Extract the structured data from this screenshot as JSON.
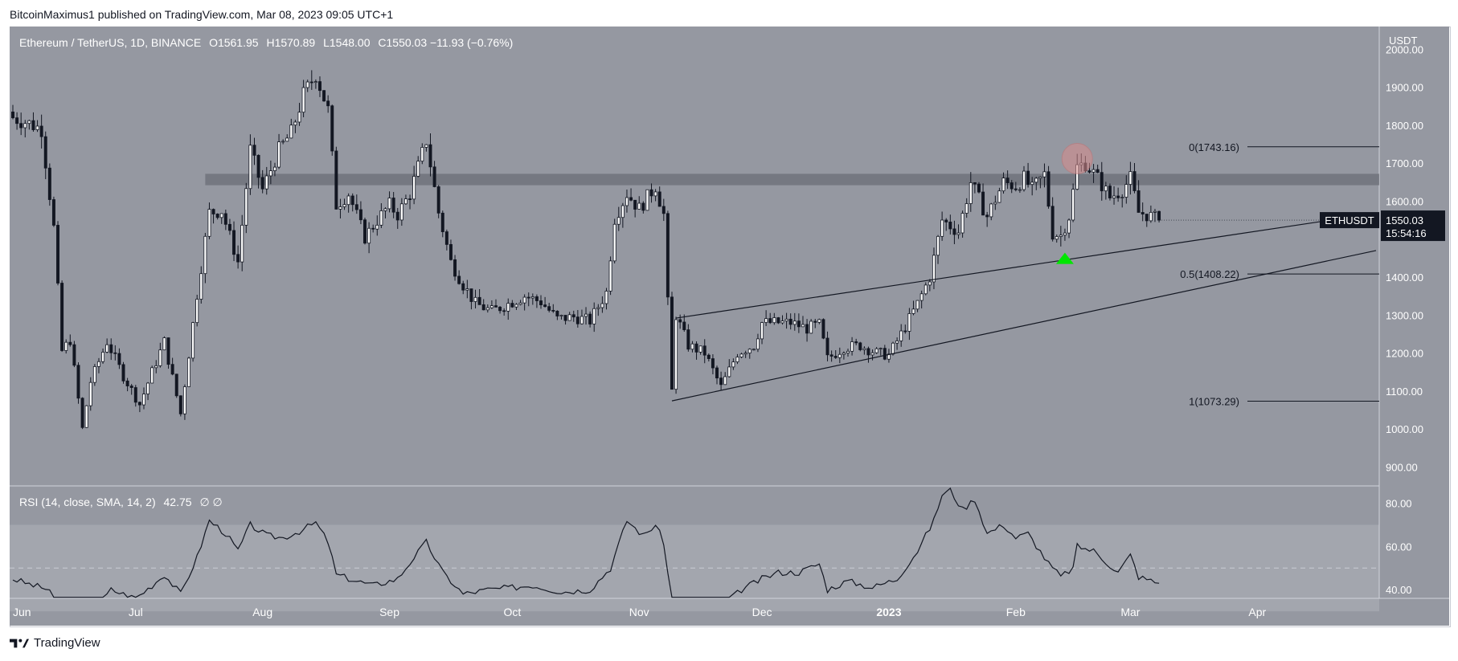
{
  "header": {
    "published": "BitcoinMaximus1 published on TradingView.com, Mar 08, 2023 09:05 UTC+1"
  },
  "legend": {
    "symbol": "Ethereum / TetherUS, 1D, BINANCE",
    "o_label": "O",
    "o": "1561.95",
    "h_label": "H",
    "h": "1570.89",
    "l_label": "L",
    "l": "1548.00",
    "c_label": "C",
    "c": "1550.03",
    "change": "−11.93 (−0.76%)"
  },
  "rsi_legend": {
    "label": "RSI (14, close, SMA, 14, 2)",
    "value": "42.75",
    "extra": "∅ ∅"
  },
  "price_axis": {
    "currency": "USDT",
    "ticks": [
      "2000.00",
      "1900.00",
      "1800.00",
      "1700.00",
      "1600.00",
      "1400.00",
      "1300.00",
      "1200.00",
      "1100.00",
      "1000.00",
      "900.00"
    ],
    "rsi_ticks": [
      "80.00",
      "60.00",
      "40.00"
    ]
  },
  "last_price": {
    "symbol": "ETHUSDT",
    "price": "1550.03",
    "countdown": "15:54:16"
  },
  "fib_labels": {
    "fib_0": "0(1743.16)",
    "fib_05": "0.5(1408.22)",
    "fib_1": "1(1073.29)"
  },
  "time_axis": {
    "labels": [
      "Jun",
      "Jul",
      "Aug",
      "Sep",
      "Oct",
      "Nov",
      "Dec",
      "2023",
      "Feb",
      "Mar",
      "Apr"
    ]
  },
  "brand": {
    "name": "TradingView"
  },
  "colors": {
    "pane_bg": "#9598a1",
    "up": "#ffffff",
    "down": "#131722",
    "zone": "#6b6e77",
    "marker_up": "#00e600",
    "marker_top": "#d98d8d",
    "label_bg": "#131722"
  },
  "chart_data": {
    "type": "candlestick",
    "title": "Ethereum / TetherUS, 1D, BINANCE",
    "x_range": [
      "2022-06-01",
      "2023-04-30"
    ],
    "y_range": [
      850,
      2060
    ],
    "resistance_zone": [
      1642,
      1672
    ],
    "fibonacci": [
      {
        "level": "0",
        "price": 1743.16
      },
      {
        "level": "0.5",
        "price": 1408.22
      },
      {
        "level": "1",
        "price": 1073.29
      }
    ],
    "channel_lines": [
      {
        "from": [
          "2022-11-09",
          1074
        ],
        "to": [
          "2023-04-30",
          1470
        ]
      },
      {
        "from": [
          "2022-11-10",
          1292
        ],
        "to": [
          "2023-04-30",
          1568
        ]
      }
    ],
    "markers": [
      {
        "type": "support_arrow",
        "date": "2023-02-13",
        "price": 1460
      },
      {
        "type": "rejection_circle",
        "date": "2023-02-16",
        "price": 1712
      }
    ],
    "close_anchors": [
      [
        "2022-06-01",
        1820
      ],
      [
        "2022-06-05",
        1805
      ],
      [
        "2022-06-08",
        1790
      ],
      [
        "2022-06-11",
        1530
      ],
      [
        "2022-06-13",
        1205
      ],
      [
        "2022-06-15",
        1235
      ],
      [
        "2022-06-18",
        1000
      ],
      [
        "2022-06-20",
        1125
      ],
      [
        "2022-06-24",
        1230
      ],
      [
        "2022-06-28",
        1140
      ],
      [
        "2022-07-02",
        1065
      ],
      [
        "2022-07-05",
        1150
      ],
      [
        "2022-07-08",
        1230
      ],
      [
        "2022-07-12",
        1040
      ],
      [
        "2022-07-16",
        1355
      ],
      [
        "2022-07-19",
        1570
      ],
      [
        "2022-07-22",
        1575
      ],
      [
        "2022-07-26",
        1440
      ],
      [
        "2022-07-29",
        1735
      ],
      [
        "2022-08-01",
        1630
      ],
      [
        "2022-08-05",
        1735
      ],
      [
        "2022-08-08",
        1780
      ],
      [
        "2022-08-11",
        1880
      ],
      [
        "2022-08-14",
        1935
      ],
      [
        "2022-08-17",
        1840
      ],
      [
        "2022-08-19",
        1590
      ],
      [
        "2022-08-22",
        1620
      ],
      [
        "2022-08-26",
        1505
      ],
      [
        "2022-08-29",
        1550
      ],
      [
        "2022-09-01",
        1590
      ],
      [
        "2022-09-03",
        1565
      ],
      [
        "2022-09-06",
        1620
      ],
      [
        "2022-09-10",
        1760
      ],
      [
        "2022-09-13",
        1570
      ],
      [
        "2022-09-16",
        1440
      ],
      [
        "2022-09-19",
        1380
      ],
      [
        "2022-09-22",
        1330
      ],
      [
        "2022-09-26",
        1310
      ],
      [
        "2022-09-30",
        1330
      ],
      [
        "2022-10-04",
        1350
      ],
      [
        "2022-10-08",
        1335
      ],
      [
        "2022-10-12",
        1290
      ],
      [
        "2022-10-16",
        1295
      ],
      [
        "2022-10-20",
        1285
      ],
      [
        "2022-10-24",
        1360
      ],
      [
        "2022-10-26",
        1555
      ],
      [
        "2022-10-29",
        1620
      ],
      [
        "2022-11-01",
        1580
      ],
      [
        "2022-11-05",
        1640
      ],
      [
        "2022-11-07",
        1565
      ],
      [
        "2022-11-09",
        1100
      ],
      [
        "2022-11-10",
        1300
      ],
      [
        "2022-11-13",
        1220
      ],
      [
        "2022-11-17",
        1200
      ],
      [
        "2022-11-21",
        1110
      ],
      [
        "2022-11-25",
        1200
      ],
      [
        "2022-11-29",
        1220
      ],
      [
        "2022-12-01",
        1280
      ],
      [
        "2022-12-04",
        1280
      ],
      [
        "2022-12-08",
        1280
      ],
      [
        "2022-12-12",
        1265
      ],
      [
        "2022-12-15",
        1275
      ],
      [
        "2022-12-17",
        1185
      ],
      [
        "2022-12-21",
        1215
      ],
      [
        "2022-12-25",
        1220
      ],
      [
        "2022-12-29",
        1200
      ],
      [
        "2023-01-01",
        1195
      ],
      [
        "2023-01-04",
        1250
      ],
      [
        "2023-01-08",
        1330
      ],
      [
        "2023-01-11",
        1400
      ],
      [
        "2023-01-14",
        1550
      ],
      [
        "2023-01-18",
        1520
      ],
      [
        "2023-01-21",
        1650
      ],
      [
        "2023-01-25",
        1560
      ],
      [
        "2023-01-29",
        1650
      ],
      [
        "2023-02-01",
        1640
      ],
      [
        "2023-02-03",
        1660
      ],
      [
        "2023-02-05",
        1630
      ],
      [
        "2023-02-08",
        1670
      ],
      [
        "2023-02-10",
        1515
      ],
      [
        "2023-02-12",
        1510
      ],
      [
        "2023-02-14",
        1560
      ],
      [
        "2023-02-16",
        1690
      ],
      [
        "2023-02-18",
        1700
      ],
      [
        "2023-02-21",
        1660
      ],
      [
        "2023-02-24",
        1610
      ],
      [
        "2023-02-27",
        1630
      ],
      [
        "2023-03-01",
        1660
      ],
      [
        "2023-03-03",
        1570
      ],
      [
        "2023-03-05",
        1565
      ],
      [
        "2023-03-08",
        1550
      ]
    ],
    "rsi_series": {
      "name": "RSI (14, close, SMA, 14, 2)",
      "range": [
        36,
        88
      ],
      "upper_band": 70,
      "mid": 50,
      "lower_band": 30,
      "anchors": [
        [
          "2022-06-01",
          45
        ],
        [
          "2022-06-06",
          42
        ],
        [
          "2022-06-10",
          40
        ],
        [
          "2022-06-13",
          25
        ],
        [
          "2022-06-18",
          22
        ],
        [
          "2022-06-22",
          33
        ],
        [
          "2022-06-25",
          40
        ],
        [
          "2022-07-01",
          36
        ],
        [
          "2022-07-05",
          42
        ],
        [
          "2022-07-08",
          47
        ],
        [
          "2022-07-12",
          38
        ],
        [
          "2022-07-16",
          55
        ],
        [
          "2022-07-19",
          72
        ],
        [
          "2022-07-23",
          66
        ],
        [
          "2022-07-26",
          58
        ],
        [
          "2022-07-29",
          70
        ],
        [
          "2022-08-02",
          65
        ],
        [
          "2022-08-06",
          64
        ],
        [
          "2022-08-10",
          67
        ],
        [
          "2022-08-14",
          71
        ],
        [
          "2022-08-17",
          62
        ],
        [
          "2022-08-19",
          47
        ],
        [
          "2022-08-24",
          44
        ],
        [
          "2022-08-28",
          42
        ],
        [
          "2022-09-03",
          45
        ],
        [
          "2022-09-07",
          55
        ],
        [
          "2022-09-10",
          62
        ],
        [
          "2022-09-14",
          48
        ],
        [
          "2022-09-19",
          38
        ],
        [
          "2022-09-25",
          40
        ],
        [
          "2022-10-01",
          41
        ],
        [
          "2022-10-06",
          42
        ],
        [
          "2022-10-13",
          39
        ],
        [
          "2022-10-20",
          40
        ],
        [
          "2022-10-25",
          50
        ],
        [
          "2022-10-29",
          72
        ],
        [
          "2022-11-02",
          65
        ],
        [
          "2022-11-05",
          70
        ],
        [
          "2022-11-07",
          62
        ],
        [
          "2022-11-09",
          33
        ],
        [
          "2022-11-14",
          35
        ],
        [
          "2022-11-21",
          32
        ],
        [
          "2022-11-26",
          40
        ],
        [
          "2022-12-01",
          45
        ],
        [
          "2022-12-05",
          48
        ],
        [
          "2022-12-10",
          48
        ],
        [
          "2022-12-15",
          52
        ],
        [
          "2022-12-17",
          40
        ],
        [
          "2022-12-22",
          44
        ],
        [
          "2022-12-28",
          41
        ],
        [
          "2023-01-03",
          45
        ],
        [
          "2023-01-08",
          58
        ],
        [
          "2023-01-12",
          72
        ],
        [
          "2023-01-14",
          84
        ],
        [
          "2023-01-16",
          86
        ],
        [
          "2023-01-19",
          77
        ],
        [
          "2023-01-22",
          82
        ],
        [
          "2023-01-25",
          66
        ],
        [
          "2023-01-29",
          70
        ],
        [
          "2023-02-01",
          64
        ],
        [
          "2023-02-04",
          66
        ],
        [
          "2023-02-09",
          52
        ],
        [
          "2023-02-12",
          46
        ],
        [
          "2023-02-15",
          50
        ],
        [
          "2023-02-16",
          60
        ],
        [
          "2023-02-20",
          58
        ],
        [
          "2023-02-23",
          53
        ],
        [
          "2023-02-26",
          48
        ],
        [
          "2023-03-01",
          56
        ],
        [
          "2023-03-03",
          46
        ],
        [
          "2023-03-08",
          43
        ]
      ]
    }
  }
}
